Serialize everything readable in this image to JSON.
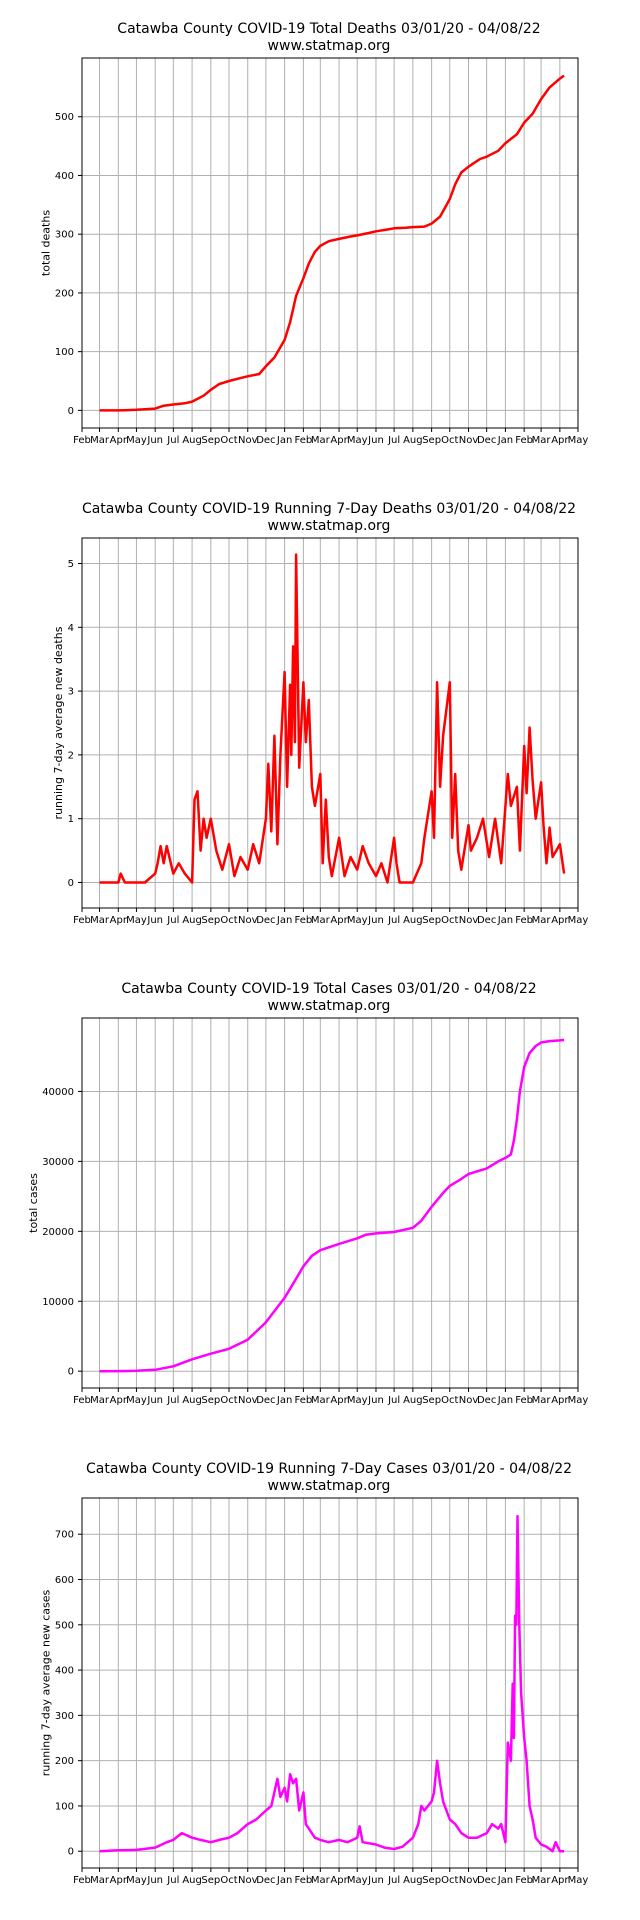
{
  "chart_data": [
    {
      "type": "line",
      "title": "Catawba County COVID-19 Total Deaths 03/01/20 - 04/08/22",
      "subtitle": "www.statmap.org",
      "xlabel": "",
      "ylabel": "total deaths",
      "color": "#ff0000",
      "grid": true,
      "x_tick_labels": [
        "Feb",
        "Mar",
        "Apr",
        "May",
        "Jun",
        "Jul",
        "Aug",
        "Sep",
        "Oct",
        "Nov",
        "Dec",
        "Jan",
        "Feb",
        "Mar",
        "Apr",
        "May",
        "Jun",
        "Jul",
        "Aug",
        "Sep",
        "Oct",
        "Nov",
        "Dec",
        "Jan",
        "Feb",
        "Mar",
        "Apr",
        "May"
      ],
      "x_tick_dates": [
        "2020-02-01",
        "2020-03-01",
        "2020-04-01",
        "2020-05-01",
        "2020-06-01",
        "2020-07-01",
        "2020-08-01",
        "2020-09-01",
        "2020-10-01",
        "2020-11-01",
        "2020-12-01",
        "2021-01-01",
        "2021-02-01",
        "2021-03-01",
        "2021-04-01",
        "2021-05-01",
        "2021-06-01",
        "2021-07-01",
        "2021-08-01",
        "2021-09-01",
        "2021-10-01",
        "2021-11-01",
        "2021-12-01",
        "2022-01-01",
        "2022-02-01",
        "2022-03-01",
        "2022-04-01",
        "2022-05-01"
      ],
      "xlim": [
        "2020-02-01",
        "2022-05-01"
      ],
      "ylim": [
        -30,
        600
      ],
      "y_ticks": [
        0,
        100,
        200,
        300,
        400,
        500
      ],
      "x": [
        "2020-03-01",
        "2020-04-01",
        "2020-05-01",
        "2020-06-01",
        "2020-06-15",
        "2020-07-01",
        "2020-07-20",
        "2020-08-01",
        "2020-08-20",
        "2020-09-01",
        "2020-09-15",
        "2020-10-01",
        "2020-10-20",
        "2020-11-01",
        "2020-11-20",
        "2020-12-01",
        "2020-12-15",
        "2021-01-01",
        "2021-01-10",
        "2021-01-20",
        "2021-02-01",
        "2021-02-10",
        "2021-02-20",
        "2021-03-01",
        "2021-03-15",
        "2021-04-01",
        "2021-04-20",
        "2021-05-01",
        "2021-05-20",
        "2021-06-01",
        "2021-06-20",
        "2021-07-01",
        "2021-07-20",
        "2021-08-01",
        "2021-08-20",
        "2021-09-01",
        "2021-09-15",
        "2021-10-01",
        "2021-10-10",
        "2021-10-20",
        "2021-11-01",
        "2021-11-20",
        "2021-12-01",
        "2021-12-20",
        "2022-01-01",
        "2022-01-20",
        "2022-02-01",
        "2022-02-15",
        "2022-03-01",
        "2022-03-15",
        "2022-04-01",
        "2022-04-08"
      ],
      "y": [
        0,
        0,
        1,
        3,
        8,
        10,
        12,
        15,
        25,
        35,
        45,
        50,
        55,
        58,
        62,
        75,
        90,
        120,
        150,
        195,
        225,
        250,
        270,
        280,
        288,
        292,
        296,
        298,
        302,
        305,
        308,
        310,
        311,
        312,
        313,
        318,
        330,
        360,
        385,
        405,
        415,
        428,
        432,
        442,
        455,
        470,
        490,
        505,
        530,
        550,
        565,
        570
      ]
    },
    {
      "type": "line",
      "title": "Catawba County COVID-19 Running 7-Day Deaths 03/01/20 - 04/08/22",
      "subtitle": "www.statmap.org",
      "xlabel": "",
      "ylabel": "running 7-day average new deaths",
      "color": "#ff0000",
      "grid": true,
      "x_tick_labels": [
        "Feb",
        "Mar",
        "Apr",
        "May",
        "Jun",
        "Jul",
        "Aug",
        "Sep",
        "Oct",
        "Nov",
        "Dec",
        "Jan",
        "Feb",
        "Mar",
        "Apr",
        "May",
        "Jun",
        "Jul",
        "Aug",
        "Sep",
        "Oct",
        "Nov",
        "Dec",
        "Jan",
        "Feb",
        "Mar",
        "Apr",
        "May"
      ],
      "x_tick_dates": [
        "2020-02-01",
        "2020-03-01",
        "2020-04-01",
        "2020-05-01",
        "2020-06-01",
        "2020-07-01",
        "2020-08-01",
        "2020-09-01",
        "2020-10-01",
        "2020-11-01",
        "2020-12-01",
        "2021-01-01",
        "2021-02-01",
        "2021-03-01",
        "2021-04-01",
        "2021-05-01",
        "2021-06-01",
        "2021-07-01",
        "2021-08-01",
        "2021-09-01",
        "2021-10-01",
        "2021-11-01",
        "2021-12-01",
        "2022-01-01",
        "2022-02-01",
        "2022-03-01",
        "2022-04-01",
        "2022-05-01"
      ],
      "xlim": [
        "2020-02-01",
        "2022-05-01"
      ],
      "ylim": [
        -0.4,
        5.4
      ],
      "y_ticks": [
        0,
        1,
        2,
        3,
        4,
        5
      ],
      "x": [
        "2020-03-01",
        "2020-04-01",
        "2020-04-05",
        "2020-04-12",
        "2020-05-01",
        "2020-05-15",
        "2020-06-01",
        "2020-06-05",
        "2020-06-10",
        "2020-06-15",
        "2020-06-20",
        "2020-07-01",
        "2020-07-10",
        "2020-07-20",
        "2020-08-01",
        "2020-08-05",
        "2020-08-10",
        "2020-08-15",
        "2020-08-20",
        "2020-08-25",
        "2020-09-01",
        "2020-09-10",
        "2020-09-20",
        "2020-10-01",
        "2020-10-10",
        "2020-10-20",
        "2020-11-01",
        "2020-11-10",
        "2020-11-20",
        "2020-12-01",
        "2020-12-05",
        "2020-12-10",
        "2020-12-15",
        "2020-12-20",
        "2020-12-25",
        "2021-01-01",
        "2021-01-05",
        "2021-01-10",
        "2021-01-12",
        "2021-01-15",
        "2021-01-18",
        "2021-01-20",
        "2021-01-25",
        "2021-02-01",
        "2021-02-05",
        "2021-02-10",
        "2021-02-15",
        "2021-02-20",
        "2021-03-01",
        "2021-03-05",
        "2021-03-10",
        "2021-03-15",
        "2021-03-20",
        "2021-04-01",
        "2021-04-10",
        "2021-04-20",
        "2021-05-01",
        "2021-05-10",
        "2021-05-20",
        "2021-06-01",
        "2021-06-10",
        "2021-06-20",
        "2021-07-01",
        "2021-07-05",
        "2021-07-10",
        "2021-07-15",
        "2021-08-01",
        "2021-08-15",
        "2021-08-20",
        "2021-09-01",
        "2021-09-05",
        "2021-09-10",
        "2021-09-15",
        "2021-09-20",
        "2021-10-01",
        "2021-10-05",
        "2021-10-10",
        "2021-10-15",
        "2021-10-20",
        "2021-11-01",
        "2021-11-05",
        "2021-11-15",
        "2021-11-25",
        "2021-12-05",
        "2021-12-15",
        "2021-12-25",
        "2022-01-05",
        "2022-01-10",
        "2022-01-20",
        "2022-01-25",
        "2022-02-01",
        "2022-02-05",
        "2022-02-10",
        "2022-02-15",
        "2022-02-20",
        "2022-03-01",
        "2022-03-05",
        "2022-03-10",
        "2022-03-15",
        "2022-03-20",
        "2022-04-01",
        "2022-04-08"
      ],
      "y": [
        0,
        0,
        0.14,
        0,
        0,
        0,
        0.14,
        0.3,
        0.57,
        0.3,
        0.57,
        0.14,
        0.3,
        0.14,
        0,
        1.3,
        1.43,
        0.5,
        1.0,
        0.7,
        1.0,
        0.5,
        0.2,
        0.6,
        0.1,
        0.4,
        0.2,
        0.6,
        0.3,
        1.0,
        1.86,
        0.8,
        2.3,
        0.6,
        2.0,
        3.3,
        1.5,
        3.1,
        2.0,
        3.7,
        2.2,
        5.14,
        1.8,
        3.14,
        2.2,
        2.86,
        1.5,
        1.2,
        1.7,
        0.3,
        1.3,
        0.4,
        0.1,
        0.7,
        0.1,
        0.4,
        0.2,
        0.57,
        0.3,
        0.1,
        0.3,
        0,
        0.7,
        0.3,
        0,
        0,
        0,
        0.3,
        0.7,
        1.43,
        0.7,
        3.14,
        1.5,
        2.3,
        3.14,
        0.7,
        1.7,
        0.5,
        0.2,
        0.9,
        0.5,
        0.7,
        1.0,
        0.4,
        1.0,
        0.3,
        1.7,
        1.2,
        1.5,
        0.5,
        2.14,
        1.4,
        2.43,
        1.6,
        1.0,
        1.57,
        0.9,
        0.3,
        0.86,
        0.4,
        0.6,
        0.14
      ]
    },
    {
      "type": "line",
      "title": "Catawba County COVID-19 Total Cases 03/01/20 - 04/08/22",
      "subtitle": "www.statmap.org",
      "xlabel": "",
      "ylabel": "total cases",
      "color": "#ff00ff",
      "grid": true,
      "x_tick_labels": [
        "Feb",
        "Mar",
        "Apr",
        "May",
        "Jun",
        "Jul",
        "Aug",
        "Sep",
        "Oct",
        "Nov",
        "Dec",
        "Jan",
        "Feb",
        "Mar",
        "Apr",
        "May",
        "Jun",
        "Jul",
        "Aug",
        "Sep",
        "Oct",
        "Nov",
        "Dec",
        "Jan",
        "Feb",
        "Mar",
        "Apr",
        "May"
      ],
      "x_tick_dates": [
        "2020-02-01",
        "2020-03-01",
        "2020-04-01",
        "2020-05-01",
        "2020-06-01",
        "2020-07-01",
        "2020-08-01",
        "2020-09-01",
        "2020-10-01",
        "2020-11-01",
        "2020-12-01",
        "2021-01-01",
        "2021-02-01",
        "2021-03-01",
        "2021-04-01",
        "2021-05-01",
        "2021-06-01",
        "2021-07-01",
        "2021-08-01",
        "2021-09-01",
        "2021-10-01",
        "2021-11-01",
        "2021-12-01",
        "2022-01-01",
        "2022-02-01",
        "2022-03-01",
        "2022-04-01",
        "2022-05-01"
      ],
      "xlim": [
        "2020-02-01",
        "2022-05-01"
      ],
      "ylim": [
        -2400,
        50500
      ],
      "y_ticks": [
        0,
        10000,
        20000,
        30000,
        40000
      ],
      "x": [
        "2020-03-01",
        "2020-04-01",
        "2020-05-01",
        "2020-06-01",
        "2020-07-01",
        "2020-08-01",
        "2020-09-01",
        "2020-10-01",
        "2020-11-01",
        "2020-12-01",
        "2021-01-01",
        "2021-01-15",
        "2021-02-01",
        "2021-02-15",
        "2021-03-01",
        "2021-04-01",
        "2021-05-01",
        "2021-05-15",
        "2021-06-01",
        "2021-07-01",
        "2021-08-01",
        "2021-08-15",
        "2021-09-01",
        "2021-09-20",
        "2021-10-01",
        "2021-10-20",
        "2021-11-01",
        "2021-12-01",
        "2021-12-20",
        "2022-01-01",
        "2022-01-10",
        "2022-01-15",
        "2022-01-20",
        "2022-01-25",
        "2022-02-01",
        "2022-02-10",
        "2022-02-20",
        "2022-03-01",
        "2022-03-15",
        "2022-04-01",
        "2022-04-08"
      ],
      "y": [
        0,
        20,
        60,
        200,
        700,
        1700,
        2500,
        3200,
        4500,
        7000,
        10500,
        12500,
        15000,
        16500,
        17300,
        18200,
        19000,
        19500,
        19700,
        19900,
        20500,
        21500,
        23500,
        25500,
        26500,
        27500,
        28200,
        29000,
        30000,
        30500,
        31000,
        33000,
        36000,
        40000,
        43500,
        45500,
        46500,
        47000,
        47200,
        47300,
        47350
      ]
    },
    {
      "type": "line",
      "title": "Catawba County COVID-19 Running 7-Day Cases 03/01/20 - 04/08/22",
      "subtitle": "www.statmap.org",
      "xlabel": "",
      "ylabel": "running 7-day average new cases",
      "color": "#ff00ff",
      "grid": true,
      "x_tick_labels": [
        "Feb",
        "Mar",
        "Apr",
        "May",
        "Jun",
        "Jul",
        "Aug",
        "Sep",
        "Oct",
        "Nov",
        "Dec",
        "Jan",
        "Feb",
        "Mar",
        "Apr",
        "May",
        "Jun",
        "Jul",
        "Aug",
        "Sep",
        "Oct",
        "Nov",
        "Dec",
        "Jan",
        "Feb",
        "Mar",
        "Apr",
        "May"
      ],
      "x_tick_dates": [
        "2020-02-01",
        "2020-03-01",
        "2020-04-01",
        "2020-05-01",
        "2020-06-01",
        "2020-07-01",
        "2020-08-01",
        "2020-09-01",
        "2020-10-01",
        "2020-11-01",
        "2020-12-01",
        "2021-01-01",
        "2021-02-01",
        "2021-03-01",
        "2021-04-01",
        "2021-05-01",
        "2021-06-01",
        "2021-07-01",
        "2021-08-01",
        "2021-09-01",
        "2021-10-01",
        "2021-11-01",
        "2021-12-01",
        "2022-01-01",
        "2022-02-01",
        "2022-03-01",
        "2022-04-01",
        "2022-05-01"
      ],
      "xlim": [
        "2020-02-01",
        "2022-05-01"
      ],
      "ylim": [
        -37,
        780
      ],
      "y_ticks": [
        0,
        100,
        200,
        300,
        400,
        500,
        600,
        700
      ],
      "x": [
        "2020-03-01",
        "2020-04-01",
        "2020-05-01",
        "2020-06-01",
        "2020-06-20",
        "2020-07-01",
        "2020-07-15",
        "2020-08-01",
        "2020-08-15",
        "2020-09-01",
        "2020-09-15",
        "2020-10-01",
        "2020-10-15",
        "2020-11-01",
        "2020-11-15",
        "2020-12-01",
        "2020-12-10",
        "2020-12-20",
        "2020-12-25",
        "2021-01-01",
        "2021-01-05",
        "2021-01-10",
        "2021-01-15",
        "2021-01-20",
        "2021-01-25",
        "2021-02-01",
        "2021-02-05",
        "2021-02-10",
        "2021-02-20",
        "2021-03-01",
        "2021-03-15",
        "2021-04-01",
        "2021-04-15",
        "2021-05-01",
        "2021-05-05",
        "2021-05-10",
        "2021-06-01",
        "2021-06-15",
        "2021-07-01",
        "2021-07-15",
        "2021-08-01",
        "2021-08-10",
        "2021-08-15",
        "2021-08-20",
        "2021-09-01",
        "2021-09-05",
        "2021-09-10",
        "2021-09-15",
        "2021-09-20",
        "2021-10-01",
        "2021-10-10",
        "2021-10-20",
        "2021-11-01",
        "2021-11-15",
        "2021-12-01",
        "2021-12-10",
        "2021-12-20",
        "2021-12-25",
        "2022-01-01",
        "2022-01-05",
        "2022-01-10",
        "2022-01-13",
        "2022-01-15",
        "2022-01-17",
        "2022-01-19",
        "2022-01-21",
        "2022-01-24",
        "2022-01-27",
        "2022-02-01",
        "2022-02-05",
        "2022-02-10",
        "2022-02-15",
        "2022-02-20",
        "2022-03-01",
        "2022-03-10",
        "2022-03-20",
        "2022-03-25",
        "2022-04-01",
        "2022-04-08"
      ],
      "y": [
        0,
        2,
        3,
        8,
        20,
        25,
        40,
        30,
        25,
        20,
        25,
        30,
        40,
        60,
        70,
        90,
        100,
        160,
        120,
        140,
        110,
        170,
        150,
        160,
        90,
        130,
        60,
        50,
        30,
        25,
        20,
        25,
        20,
        30,
        55,
        20,
        15,
        8,
        5,
        10,
        30,
        60,
        100,
        90,
        110,
        130,
        200,
        150,
        110,
        70,
        60,
        40,
        30,
        30,
        40,
        60,
        50,
        60,
        20,
        240,
        200,
        370,
        250,
        520,
        500,
        740,
        500,
        350,
        250,
        200,
        100,
        70,
        30,
        15,
        10,
        0,
        20,
        0,
        0
      ]
    }
  ]
}
